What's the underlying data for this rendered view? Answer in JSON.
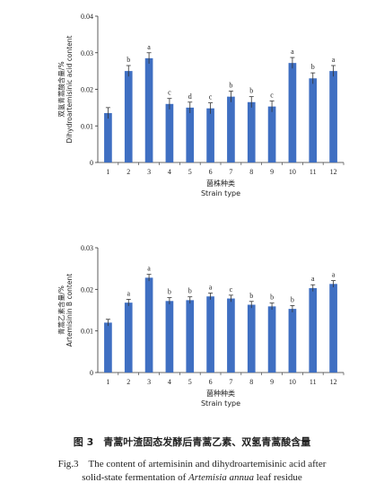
{
  "colors": {
    "bar": "#3f6fc2",
    "axis": "#333333",
    "error": "#333333"
  },
  "chart_data": [
    {
      "type": "bar",
      "ylabel_cn": "双氢青蒿酸含量/%",
      "ylabel_en": "Dihydroartemisinic acid content",
      "xlabel_cn": "菌株种类",
      "xlabel_en": "Strain type",
      "ylim": [
        0,
        0.04
      ],
      "yticks": [
        "0",
        "0.01",
        "0.02",
        "0.03",
        "0.04"
      ],
      "categories": [
        "1",
        "2",
        "3",
        "4",
        "5",
        "6",
        "7",
        "8",
        "9",
        "10",
        "11",
        "12"
      ],
      "values": [
        0.0135,
        0.025,
        0.0285,
        0.016,
        0.015,
        0.0148,
        0.018,
        0.0165,
        0.0153,
        0.0272,
        0.023,
        0.025
      ],
      "errors": [
        0.0015,
        0.0015,
        0.0015,
        0.0015,
        0.0015,
        0.0015,
        0.0015,
        0.0015,
        0.0015,
        0.0015,
        0.0015,
        0.0015
      ],
      "letters": [
        "",
        "b",
        "a",
        "c",
        "d",
        "c",
        "b",
        "b",
        "c",
        "a",
        "b",
        "a"
      ]
    },
    {
      "type": "bar",
      "ylabel_cn": "青蒿乙素含量/%",
      "ylabel_en": "Artemisinin B content",
      "xlabel_cn": "菌种种类",
      "xlabel_en": "Strain type",
      "ylim": [
        0,
        0.03
      ],
      "yticks": [
        "0",
        "0.01",
        "0.02",
        "0.03"
      ],
      "categories": [
        "1",
        "2",
        "3",
        "4",
        "5",
        "6",
        "7",
        "8",
        "9",
        "10",
        "11",
        "12"
      ],
      "values": [
        0.012,
        0.0168,
        0.0228,
        0.0172,
        0.0174,
        0.0183,
        0.0178,
        0.0163,
        0.0159,
        0.0153,
        0.0203,
        0.0213
      ],
      "errors": [
        0.0008,
        0.0008,
        0.0008,
        0.0008,
        0.0008,
        0.0008,
        0.0008,
        0.0008,
        0.0008,
        0.0008,
        0.0008,
        0.0008
      ],
      "letters": [
        "",
        "a",
        "a",
        "b",
        "b",
        "a",
        "c",
        "b",
        "b",
        "b",
        "a",
        "a"
      ]
    }
  ],
  "caption": {
    "cn": "图 3　青蒿叶渣固态发酵后青蒿乙素、双氢青蒿酸含量",
    "en_line1": "Fig.3　The content of artemisinin and dihydroartemisinic acid after",
    "en_line2_pre": "solid-state fermentation of ",
    "en_line2_italic": "Artemisia annua",
    "en_line2_post": " leaf residue"
  }
}
